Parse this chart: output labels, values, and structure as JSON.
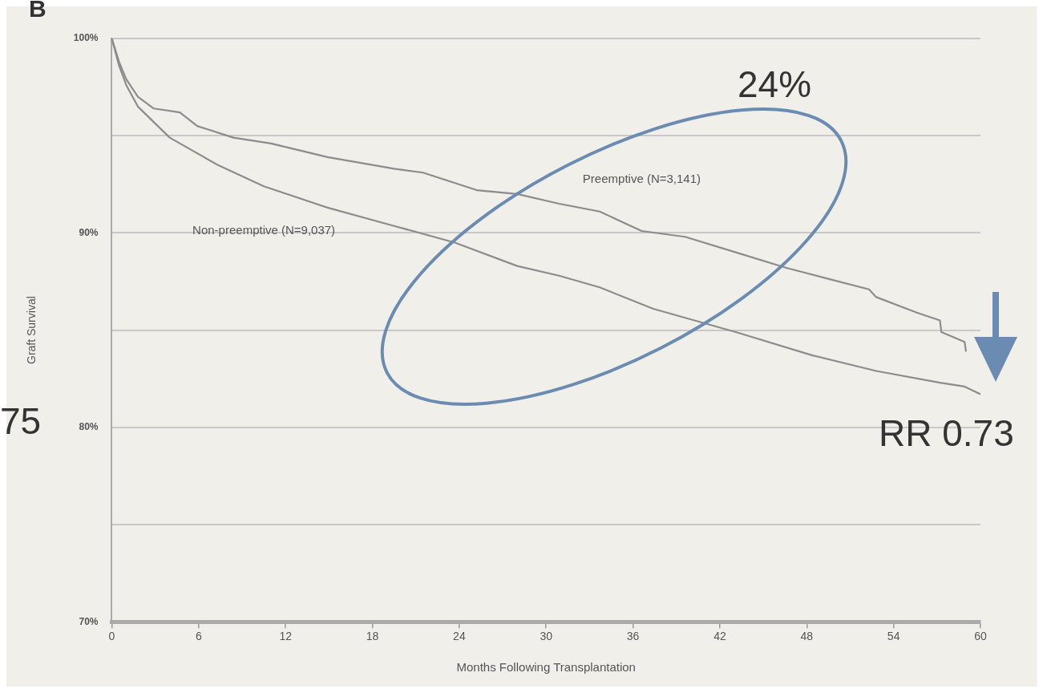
{
  "chart_data": {
    "type": "line",
    "xlabel": "Months Following Transplantation",
    "ylabel": "Graft Survival",
    "annotations": [
      "B",
      "24%",
      "75",
      "RR 0.73"
    ],
    "xlim": [
      0,
      60
    ],
    "xticks": [
      0,
      6,
      12,
      18,
      24,
      30,
      36,
      42,
      48,
      54,
      60
    ],
    "ylim": [
      70,
      100
    ],
    "yticks": [
      {
        "value": 70,
        "label": "70%"
      },
      {
        "value": 75,
        "label": null
      },
      {
        "value": 80,
        "label": "80%"
      },
      {
        "value": 85,
        "label": null
      },
      {
        "value": 90,
        "label": "90%"
      },
      {
        "value": 95,
        "label": null
      },
      {
        "value": 100,
        "label": "100%"
      }
    ],
    "grid": "y",
    "legend": false,
    "marker": "none",
    "line_style": "solid",
    "series": [
      {
        "name": "Preemptive (N=3,141)",
        "color": "#8c8c8c",
        "x": [
          0,
          0.5,
          1,
          1.8,
          2.9,
          4.7,
          5.9,
          8.4,
          11,
          14.9,
          19.5,
          21.5,
          25.2,
          28,
          30.9,
          33.7,
          36.6,
          39.6,
          43.1,
          46.6,
          49.7,
          52.3,
          52.8,
          55.6,
          57.2,
          57.3,
          58.9,
          59
        ],
        "values": [
          100,
          98.8,
          97.9,
          97.0,
          96.4,
          96.2,
          95.5,
          94.9,
          94.6,
          93.9,
          93.3,
          93.1,
          92.2,
          92.0,
          91.5,
          91.1,
          90.1,
          89.8,
          89.0,
          88.2,
          87.6,
          87.1,
          86.7,
          85.9,
          85.5,
          84.9,
          84.4,
          83.9
        ]
      },
      {
        "name": "Non-preemptive (N=9,037)",
        "color": "#8c8c8c",
        "x": [
          0,
          0.5,
          1,
          1.8,
          4,
          7.3,
          10.5,
          14.9,
          19.3,
          23.7,
          28,
          30.9,
          33.7,
          37.4,
          43.1,
          48.4,
          52.8,
          57.2,
          58.9,
          60
        ],
        "values": [
          100,
          98.6,
          97.6,
          96.5,
          94.9,
          93.5,
          92.4,
          91.3,
          90.4,
          89.5,
          88.3,
          87.8,
          87.2,
          86.1,
          84.9,
          83.7,
          82.9,
          82.3,
          82.1,
          81.7
        ]
      }
    ]
  }
}
